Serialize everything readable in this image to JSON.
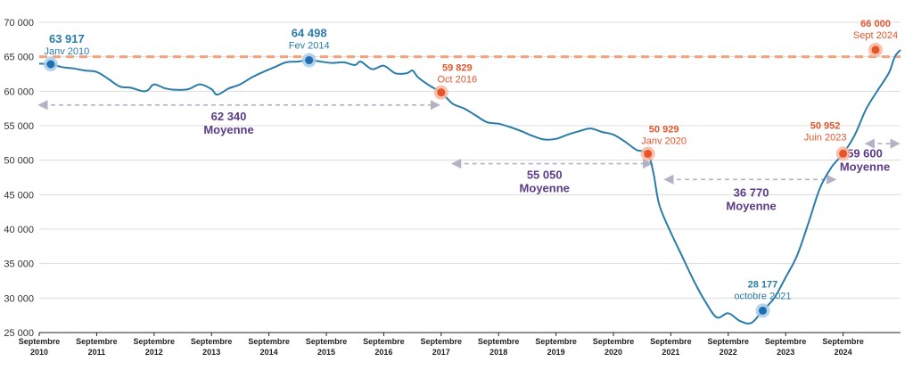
{
  "chart_data": {
    "type": "line",
    "ylim": [
      25000,
      70000
    ],
    "yticks": [
      {
        "value": 25000,
        "label": "25 000"
      },
      {
        "value": 30000,
        "label": "30 000"
      },
      {
        "value": 35000,
        "label": "35 000"
      },
      {
        "value": 40000,
        "label": "40 000"
      },
      {
        "value": 45000,
        "label": "45 000"
      },
      {
        "value": 50000,
        "label": "50 000"
      },
      {
        "value": 55000,
        "label": "55 000"
      },
      {
        "value": 60000,
        "label": "60 000"
      },
      {
        "value": 65000,
        "label": "65 000"
      },
      {
        "value": 70000,
        "label": "70 000"
      }
    ],
    "xlim": [
      2010.0,
      2025.0
    ],
    "xticks": [
      {
        "x": 2010.0,
        "month": "Septembre",
        "year": "2010"
      },
      {
        "x": 2011.0,
        "month": "Septembre",
        "year": "2011"
      },
      {
        "x": 2012.0,
        "month": "Septembre",
        "year": "2012"
      },
      {
        "x": 2013.0,
        "month": "Septembre",
        "year": "2013"
      },
      {
        "x": 2014.0,
        "month": "Septembre",
        "year": "2014"
      },
      {
        "x": 2015.0,
        "month": "Septembre",
        "year": "2015"
      },
      {
        "x": 2016.0,
        "month": "Septembre",
        "year": "2016"
      },
      {
        "x": 2017.0,
        "month": "Septembre",
        "year": "2017"
      },
      {
        "x": 2018.0,
        "month": "Septembre",
        "year": "2018"
      },
      {
        "x": 2019.0,
        "month": "Septembre",
        "year": "2019"
      },
      {
        "x": 2020.0,
        "month": "Septembre",
        "year": "2020"
      },
      {
        "x": 2021.0,
        "month": "Septembre",
        "year": "2021"
      },
      {
        "x": 2022.0,
        "month": "Septembre",
        "year": "2022"
      },
      {
        "x": 2023.0,
        "month": "Septembre",
        "year": "2023"
      },
      {
        "x": 2024.0,
        "month": "Septembre",
        "year": "2024"
      }
    ],
    "reference_line": {
      "y": 65000,
      "color": "#f5a27a"
    },
    "series": [
      {
        "color": "#2a7ca8",
        "points": [
          [
            2010.0,
            64000
          ],
          [
            2010.2,
            63917
          ],
          [
            2010.4,
            63500
          ],
          [
            2010.6,
            63300
          ],
          [
            2010.8,
            63000
          ],
          [
            2011.0,
            62800
          ],
          [
            2011.2,
            61800
          ],
          [
            2011.4,
            60700
          ],
          [
            2011.6,
            60500
          ],
          [
            2011.8,
            60000
          ],
          [
            2011.9,
            60200
          ],
          [
            2012.0,
            61000
          ],
          [
            2012.2,
            60400
          ],
          [
            2012.4,
            60200
          ],
          [
            2012.6,
            60300
          ],
          [
            2012.8,
            61000
          ],
          [
            2013.0,
            60300
          ],
          [
            2013.1,
            59500
          ],
          [
            2013.3,
            60400
          ],
          [
            2013.5,
            61000
          ],
          [
            2013.7,
            62000
          ],
          [
            2013.9,
            62800
          ],
          [
            2014.1,
            63500
          ],
          [
            2014.3,
            64200
          ],
          [
            2014.5,
            64300
          ],
          [
            2014.7,
            64498
          ],
          [
            2014.9,
            64300
          ],
          [
            2015.1,
            64100
          ],
          [
            2015.3,
            64200
          ],
          [
            2015.5,
            63800
          ],
          [
            2015.6,
            64300
          ],
          [
            2015.8,
            63200
          ],
          [
            2016.0,
            63700
          ],
          [
            2016.2,
            62600
          ],
          [
            2016.4,
            62600
          ],
          [
            2016.5,
            63000
          ],
          [
            2016.6,
            62000
          ],
          [
            2016.8,
            60800
          ],
          [
            2017.0,
            59829
          ],
          [
            2017.2,
            58200
          ],
          [
            2017.4,
            57500
          ],
          [
            2017.6,
            56500
          ],
          [
            2017.8,
            55500
          ],
          [
            2018.0,
            55300
          ],
          [
            2018.2,
            54800
          ],
          [
            2018.4,
            54200
          ],
          [
            2018.6,
            53500
          ],
          [
            2018.8,
            53000
          ],
          [
            2019.0,
            53100
          ],
          [
            2019.2,
            53700
          ],
          [
            2019.4,
            54200
          ],
          [
            2019.6,
            54600
          ],
          [
            2019.8,
            54100
          ],
          [
            2020.0,
            53700
          ],
          [
            2020.2,
            52700
          ],
          [
            2020.4,
            51500
          ],
          [
            2020.6,
            50929
          ],
          [
            2020.7,
            48000
          ],
          [
            2020.8,
            43500
          ],
          [
            2021.0,
            39500
          ],
          [
            2021.2,
            36000
          ],
          [
            2021.4,
            32500
          ],
          [
            2021.6,
            29500
          ],
          [
            2021.8,
            27200
          ],
          [
            2022.0,
            27800
          ],
          [
            2022.2,
            26700
          ],
          [
            2022.4,
            26400
          ],
          [
            2022.6,
            28177
          ],
          [
            2022.8,
            30000
          ],
          [
            2023.0,
            33000
          ],
          [
            2023.2,
            36200
          ],
          [
            2023.4,
            41000
          ],
          [
            2023.6,
            46000
          ],
          [
            2023.8,
            49000
          ],
          [
            2024.0,
            50952
          ],
          [
            2024.2,
            53600
          ],
          [
            2024.4,
            57400
          ],
          [
            2024.6,
            60100
          ],
          [
            2024.8,
            62700
          ],
          [
            2024.9,
            65000
          ],
          [
            2025.0,
            66000
          ]
        ]
      }
    ],
    "markers": [
      {
        "x": 2010.2,
        "y": 63917,
        "style": "blue",
        "value_label": "63 917",
        "date_label": "Janv 2010",
        "label_side": "right-above"
      },
      {
        "x": 2014.7,
        "y": 64498,
        "style": "blue",
        "value_label": "64 498",
        "date_label": "Fev 2014",
        "label_side": "above"
      },
      {
        "x": 2017.0,
        "y": 59829,
        "style": "orange",
        "value_label": "59 829",
        "date_label": "Oct 2016",
        "label_side": "right-above"
      },
      {
        "x": 2020.6,
        "y": 50929,
        "style": "orange",
        "value_label": "50 929",
        "date_label": "Janv 2020",
        "label_side": "right-above"
      },
      {
        "x": 2022.6,
        "y": 28177,
        "style": "blue",
        "value_label": "28 177",
        "date_label": "octobre 2021",
        "label_side": "above"
      },
      {
        "x": 2024.0,
        "y": 50952,
        "style": "orange",
        "value_label": "50 952",
        "date_label": "Juin 2023",
        "label_side": "left-above"
      },
      {
        "x": 2025.0,
        "y": 66000,
        "style": "orange",
        "value_label": "66 000",
        "date_label": "Sept 2024",
        "label_side": "above"
      }
    ],
    "averages": [
      {
        "x_start": 2010.0,
        "x_end": 2016.9,
        "y_line": 58000,
        "value_label": "62 340",
        "label": "Moyenne",
        "label_x": 2013.3,
        "label_y": 55800
      },
      {
        "x_start": 2017.2,
        "x_end": 2020.6,
        "y_line": 49500,
        "value_label": "55 050",
        "label": "Moyenne",
        "label_x": 2018.8,
        "label_y": 47300
      },
      {
        "x_start": 2020.9,
        "x_end": 2023.8,
        "y_line": 47200,
        "value_label": "36 770",
        "label": "Moyenne",
        "label_x": 2022.4,
        "label_y": 44700
      },
      {
        "x_start": 2024.4,
        "x_end": 2025.4,
        "y_line": 52400,
        "value_label": "59 600",
        "label": "Moyenne",
        "label_x": 2024.9,
        "label_y": 50400
      }
    ]
  },
  "colors": {
    "line": "#2a7ca8",
    "blue_marker": "#1f6fb0",
    "blue_halo": "#a9cdea",
    "orange_marker": "#e8532a",
    "orange_halo": "#f7b7a0",
    "blue_text": "#2a7ca8",
    "orange_text": "#e3552c",
    "average_text": "#5b3a87",
    "average_arrow": "#b3b3c6",
    "grid": "#dcdcdc",
    "axis": "#222222"
  }
}
